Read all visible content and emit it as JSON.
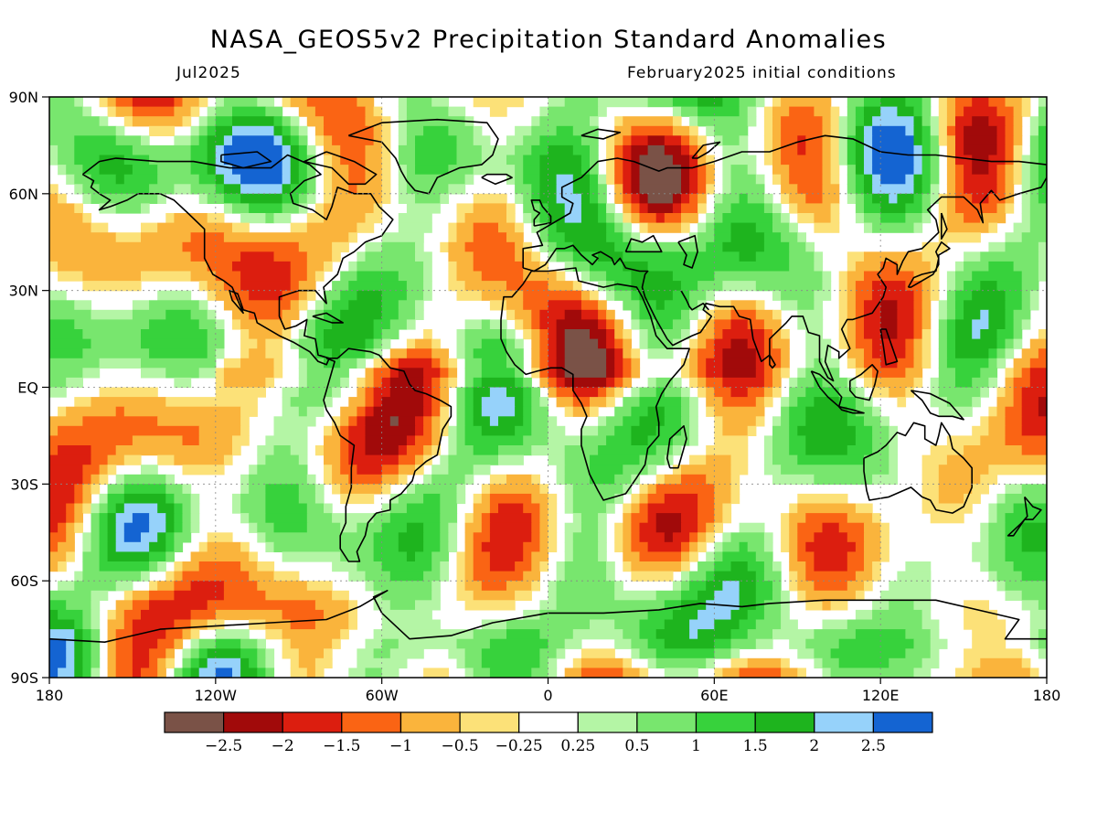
{
  "title": "NASA_GEOS5v2 Precipitation Standard Anomalies",
  "subtitle_left": "Jul2025",
  "subtitle_right": "February2025 initial conditions",
  "map": {
    "lon_range": [
      -180,
      180
    ],
    "lat_range": [
      -90,
      90
    ],
    "lat_labels": [
      {
        "value": 90,
        "text": "90N"
      },
      {
        "value": 60,
        "text": "60N"
      },
      {
        "value": 30,
        "text": "30N"
      },
      {
        "value": 0,
        "text": "EQ"
      },
      {
        "value": -30,
        "text": "30S"
      },
      {
        "value": -60,
        "text": "60S"
      },
      {
        "value": -90,
        "text": "90S"
      }
    ],
    "lon_labels": [
      {
        "value": -180,
        "text": "180"
      },
      {
        "value": -120,
        "text": "120W"
      },
      {
        "value": -60,
        "text": "60W"
      },
      {
        "value": 0,
        "text": "0"
      },
      {
        "value": 60,
        "text": "60E"
      },
      {
        "value": 120,
        "text": "120E"
      },
      {
        "value": 180,
        "text": "180"
      }
    ]
  },
  "colorbar": {
    "colors": [
      "#7a5247",
      "#a10a0a",
      "#dc1e0f",
      "#fa6414",
      "#fab43c",
      "#fce178",
      "#ffffff",
      "#b4f5a5",
      "#78e66e",
      "#37d23c",
      "#1eb41e",
      "#96d2fa",
      "#1464d2"
    ],
    "labels": [
      "-2.5",
      "-2",
      "-1.5",
      "-1",
      "-0.5",
      "-0.25",
      "0.25",
      "0.5",
      "1",
      "1.5",
      "2",
      "2.5"
    ]
  }
}
